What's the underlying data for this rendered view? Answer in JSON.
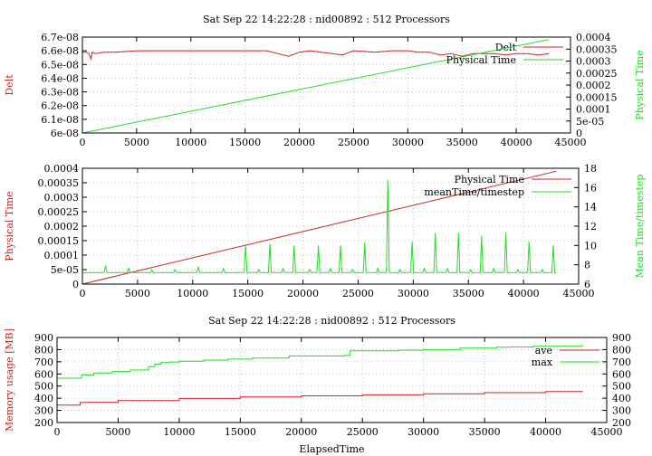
{
  "colors": {
    "red": "#cc2222",
    "green": "#22dd22"
  },
  "chart_data": [
    {
      "type": "line",
      "title": "Sat Sep 22 14:22:28 : nid00892 : 512 Processors",
      "xlim": [
        0,
        45000
      ],
      "ylim": [
        6e-08,
        6.7e-08
      ],
      "y2lim": [
        0,
        0.0004
      ],
      "x_ticks": [
        "0",
        "5000",
        "10000",
        "15000",
        "20000",
        "25000",
        "30000",
        "35000",
        "40000",
        "45000"
      ],
      "y_ticks": [
        "6e-08",
        "6.1e-08",
        "6.2e-08",
        "6.3e-08",
        "6.4e-08",
        "6.5e-08",
        "6.6e-08",
        "6.7e-08"
      ],
      "y2_ticks": [
        "0",
        "5e-05",
        "0.0001",
        "0.00015",
        "0.0002",
        "0.00025",
        "0.0003",
        "0.00035",
        "0.0004"
      ],
      "ylabel": "Delt",
      "y2label": "Physical Time",
      "legend_position": "top-right",
      "series": [
        {
          "name": "Delt",
          "axis": "left",
          "color": "red",
          "x": [
            0,
            300,
            600,
            800,
            900,
            1200,
            2000,
            3000,
            5000,
            7500,
            10000,
            12500,
            15000,
            17000,
            18000,
            19000,
            20000,
            21000,
            22000,
            23000,
            24000,
            25000,
            27000,
            28500,
            30000,
            31000,
            32000,
            33000,
            34000,
            35000,
            36000,
            37000,
            38000,
            39000,
            40000,
            41000,
            42000,
            43000
          ],
          "y": [
            6.59e-08,
            6.59e-08,
            6.58e-08,
            6.54e-08,
            6.59e-08,
            6.58e-08,
            6.59e-08,
            6.59e-08,
            6.6e-08,
            6.6e-08,
            6.6e-08,
            6.6e-08,
            6.6e-08,
            6.6e-08,
            6.58e-08,
            6.56e-08,
            6.59e-08,
            6.6e-08,
            6.59e-08,
            6.58e-08,
            6.57e-08,
            6.6e-08,
            6.59e-08,
            6.6e-08,
            6.6e-08,
            6.59e-08,
            6.59e-08,
            6.57e-08,
            6.58e-08,
            6.56e-08,
            6.58e-08,
            6.58e-08,
            6.58e-08,
            6.57e-08,
            6.58e-08,
            6.58e-08,
            6.57e-08,
            6.58e-08
          ]
        },
        {
          "name": "Physical Time",
          "axis": "right",
          "color": "green",
          "x": [
            0,
            43000
          ],
          "y": [
            0,
            0.00039
          ]
        }
      ]
    },
    {
      "type": "line",
      "title": "",
      "xlim": [
        0,
        45000
      ],
      "ylim": [
        0,
        0.0004
      ],
      "y2lim": [
        6,
        18
      ],
      "x_ticks": [
        "0",
        "5000",
        "10000",
        "15000",
        "20000",
        "25000",
        "30000",
        "35000",
        "40000",
        "45000"
      ],
      "y_ticks": [
        "0",
        "5e-05",
        "0.0001",
        "0.00015",
        "0.0002",
        "0.00025",
        "0.0003",
        "0.00035",
        "0.0004"
      ],
      "y2_ticks": [
        "6",
        "8",
        "10",
        "12",
        "14",
        "16",
        "18"
      ],
      "ylabel": "Physical Time",
      "y2label": "Mean Time/timestep",
      "legend_position": "top-right",
      "series": [
        {
          "name": "Physical Time",
          "axis": "left",
          "color": "red",
          "x": [
            0,
            43000
          ],
          "y": [
            0,
            0.00039
          ]
        },
        {
          "name": "meanTime/timestep",
          "axis": "right",
          "color": "green",
          "baseline": 7.2,
          "spikes": [
            [
              2100,
              7.9
            ],
            [
              4200,
              7.6
            ],
            [
              6300,
              7.5
            ],
            [
              8400,
              7.5
            ],
            [
              10500,
              7.8
            ],
            [
              12800,
              7.6
            ],
            [
              14800,
              10.0
            ],
            [
              16000,
              7.5
            ],
            [
              17000,
              10.2
            ],
            [
              18200,
              7.6
            ],
            [
              19200,
              10.0
            ],
            [
              20600,
              7.5
            ],
            [
              21400,
              10.0
            ],
            [
              22500,
              7.6
            ],
            [
              23400,
              10.0
            ],
            [
              24500,
              7.5
            ],
            [
              25600,
              10.3
            ],
            [
              26800,
              7.6
            ],
            [
              27700,
              16.8
            ],
            [
              28800,
              7.5
            ],
            [
              29900,
              10.4
            ],
            [
              31000,
              7.6
            ],
            [
              32000,
              11.3
            ],
            [
              33100,
              7.6
            ],
            [
              34100,
              11.3
            ],
            [
              35200,
              7.5
            ],
            [
              36200,
              11.0
            ],
            [
              37300,
              7.6
            ],
            [
              38400,
              11.3
            ],
            [
              39500,
              7.5
            ],
            [
              40500,
              10.4
            ],
            [
              41700,
              7.5
            ],
            [
              42700,
              10.0
            ]
          ]
        }
      ]
    },
    {
      "type": "line",
      "title": "Sat Sep 22 14:22:28 : nid00892 : 512 Processors",
      "xlim": [
        0,
        45000
      ],
      "ylim": [
        200,
        900
      ],
      "y2lim": [
        200,
        900
      ],
      "x_ticks": [
        "0",
        "5000",
        "10000",
        "15000",
        "20000",
        "25000",
        "30000",
        "35000",
        "40000",
        "45000"
      ],
      "y_ticks": [
        "200",
        "300",
        "400",
        "500",
        "600",
        "700",
        "800",
        "900"
      ],
      "y2_ticks": [
        "200",
        "300",
        "400",
        "500",
        "600",
        "700",
        "800",
        "900"
      ],
      "xlabel": "ElapsedTime",
      "ylabel": "Memory usage [MB]",
      "legend_position": "top-right",
      "series": [
        {
          "name": "ave",
          "axis": "left",
          "color": "red",
          "step": true,
          "x": [
            0,
            1800,
            1900,
            5000,
            10000,
            15000,
            20000,
            25000,
            30000,
            35000,
            40000,
            43000
          ],
          "y": [
            343,
            343,
            365,
            380,
            398,
            410,
            420,
            428,
            437,
            446,
            455,
            460
          ]
        },
        {
          "name": "max",
          "axis": "left",
          "color": "green",
          "step": true,
          "x": [
            0,
            1800,
            2000,
            3000,
            4500,
            6000,
            7500,
            8000,
            8500,
            9200,
            10000,
            12000,
            14000,
            16000,
            19000,
            23500,
            24000,
            28000,
            30000,
            33000,
            36000,
            37000,
            39000,
            43000
          ],
          "y": [
            565,
            565,
            592,
            608,
            620,
            632,
            660,
            680,
            693,
            698,
            705,
            714,
            722,
            731,
            748,
            752,
            790,
            795,
            800,
            812,
            820,
            822,
            828,
            840
          ]
        }
      ]
    }
  ]
}
